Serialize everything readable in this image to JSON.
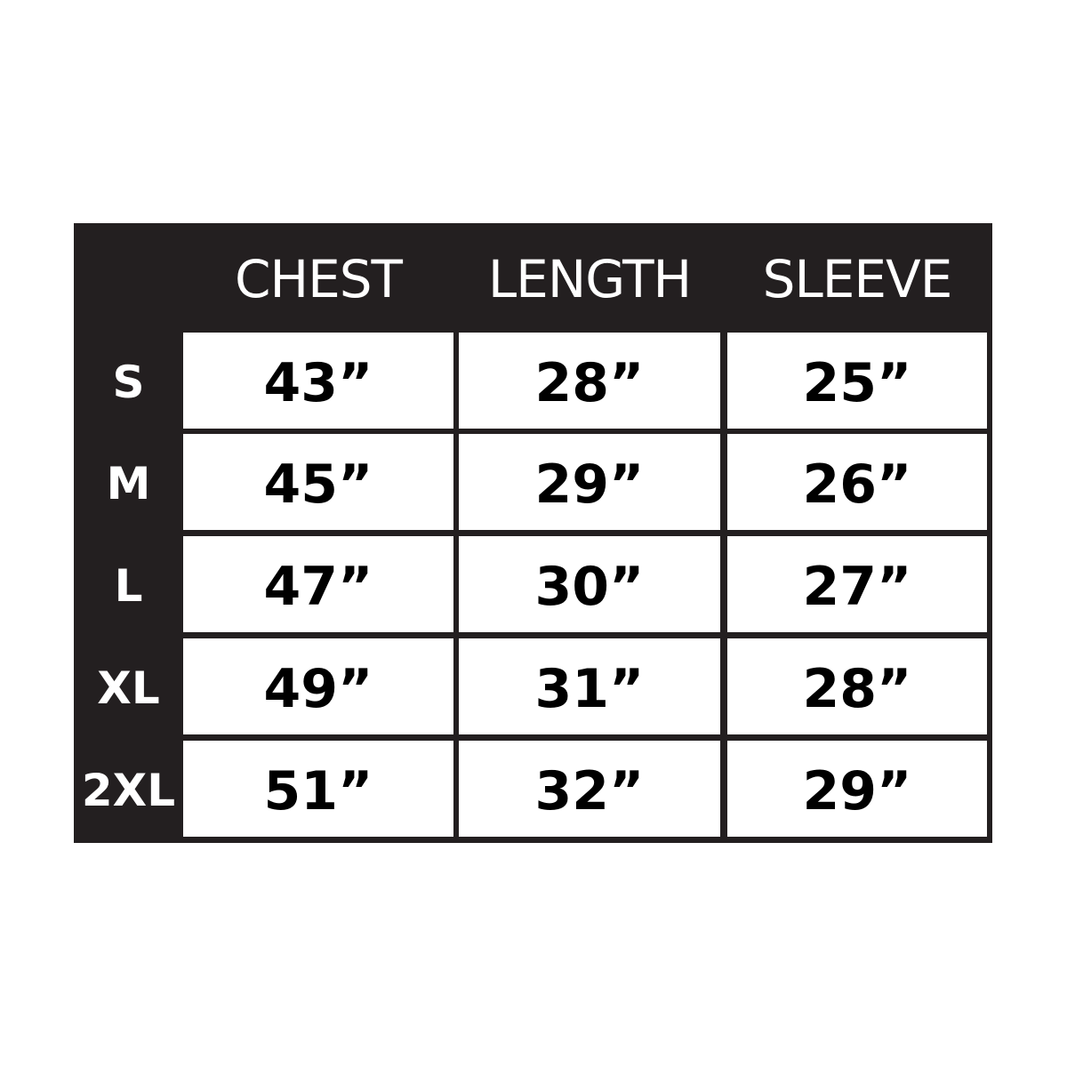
{
  "chart_data": {
    "type": "table",
    "columns": [
      "CHEST",
      "LENGTH",
      "SLEEVE"
    ],
    "rows": [
      {
        "label": "S",
        "values": [
          "43”",
          "28”",
          "25”"
        ]
      },
      {
        "label": "M",
        "values": [
          "45”",
          "29”",
          "26”"
        ]
      },
      {
        "label": "L",
        "values": [
          "47”",
          "30”",
          "27”"
        ]
      },
      {
        "label": "XL",
        "values": [
          "49”",
          "31”",
          "28”"
        ]
      },
      {
        "label": "2XL",
        "values": [
          "51”",
          "32”",
          "29”"
        ]
      }
    ],
    "colors": {
      "frame": "#231f20",
      "cell": "#ffffff"
    }
  }
}
